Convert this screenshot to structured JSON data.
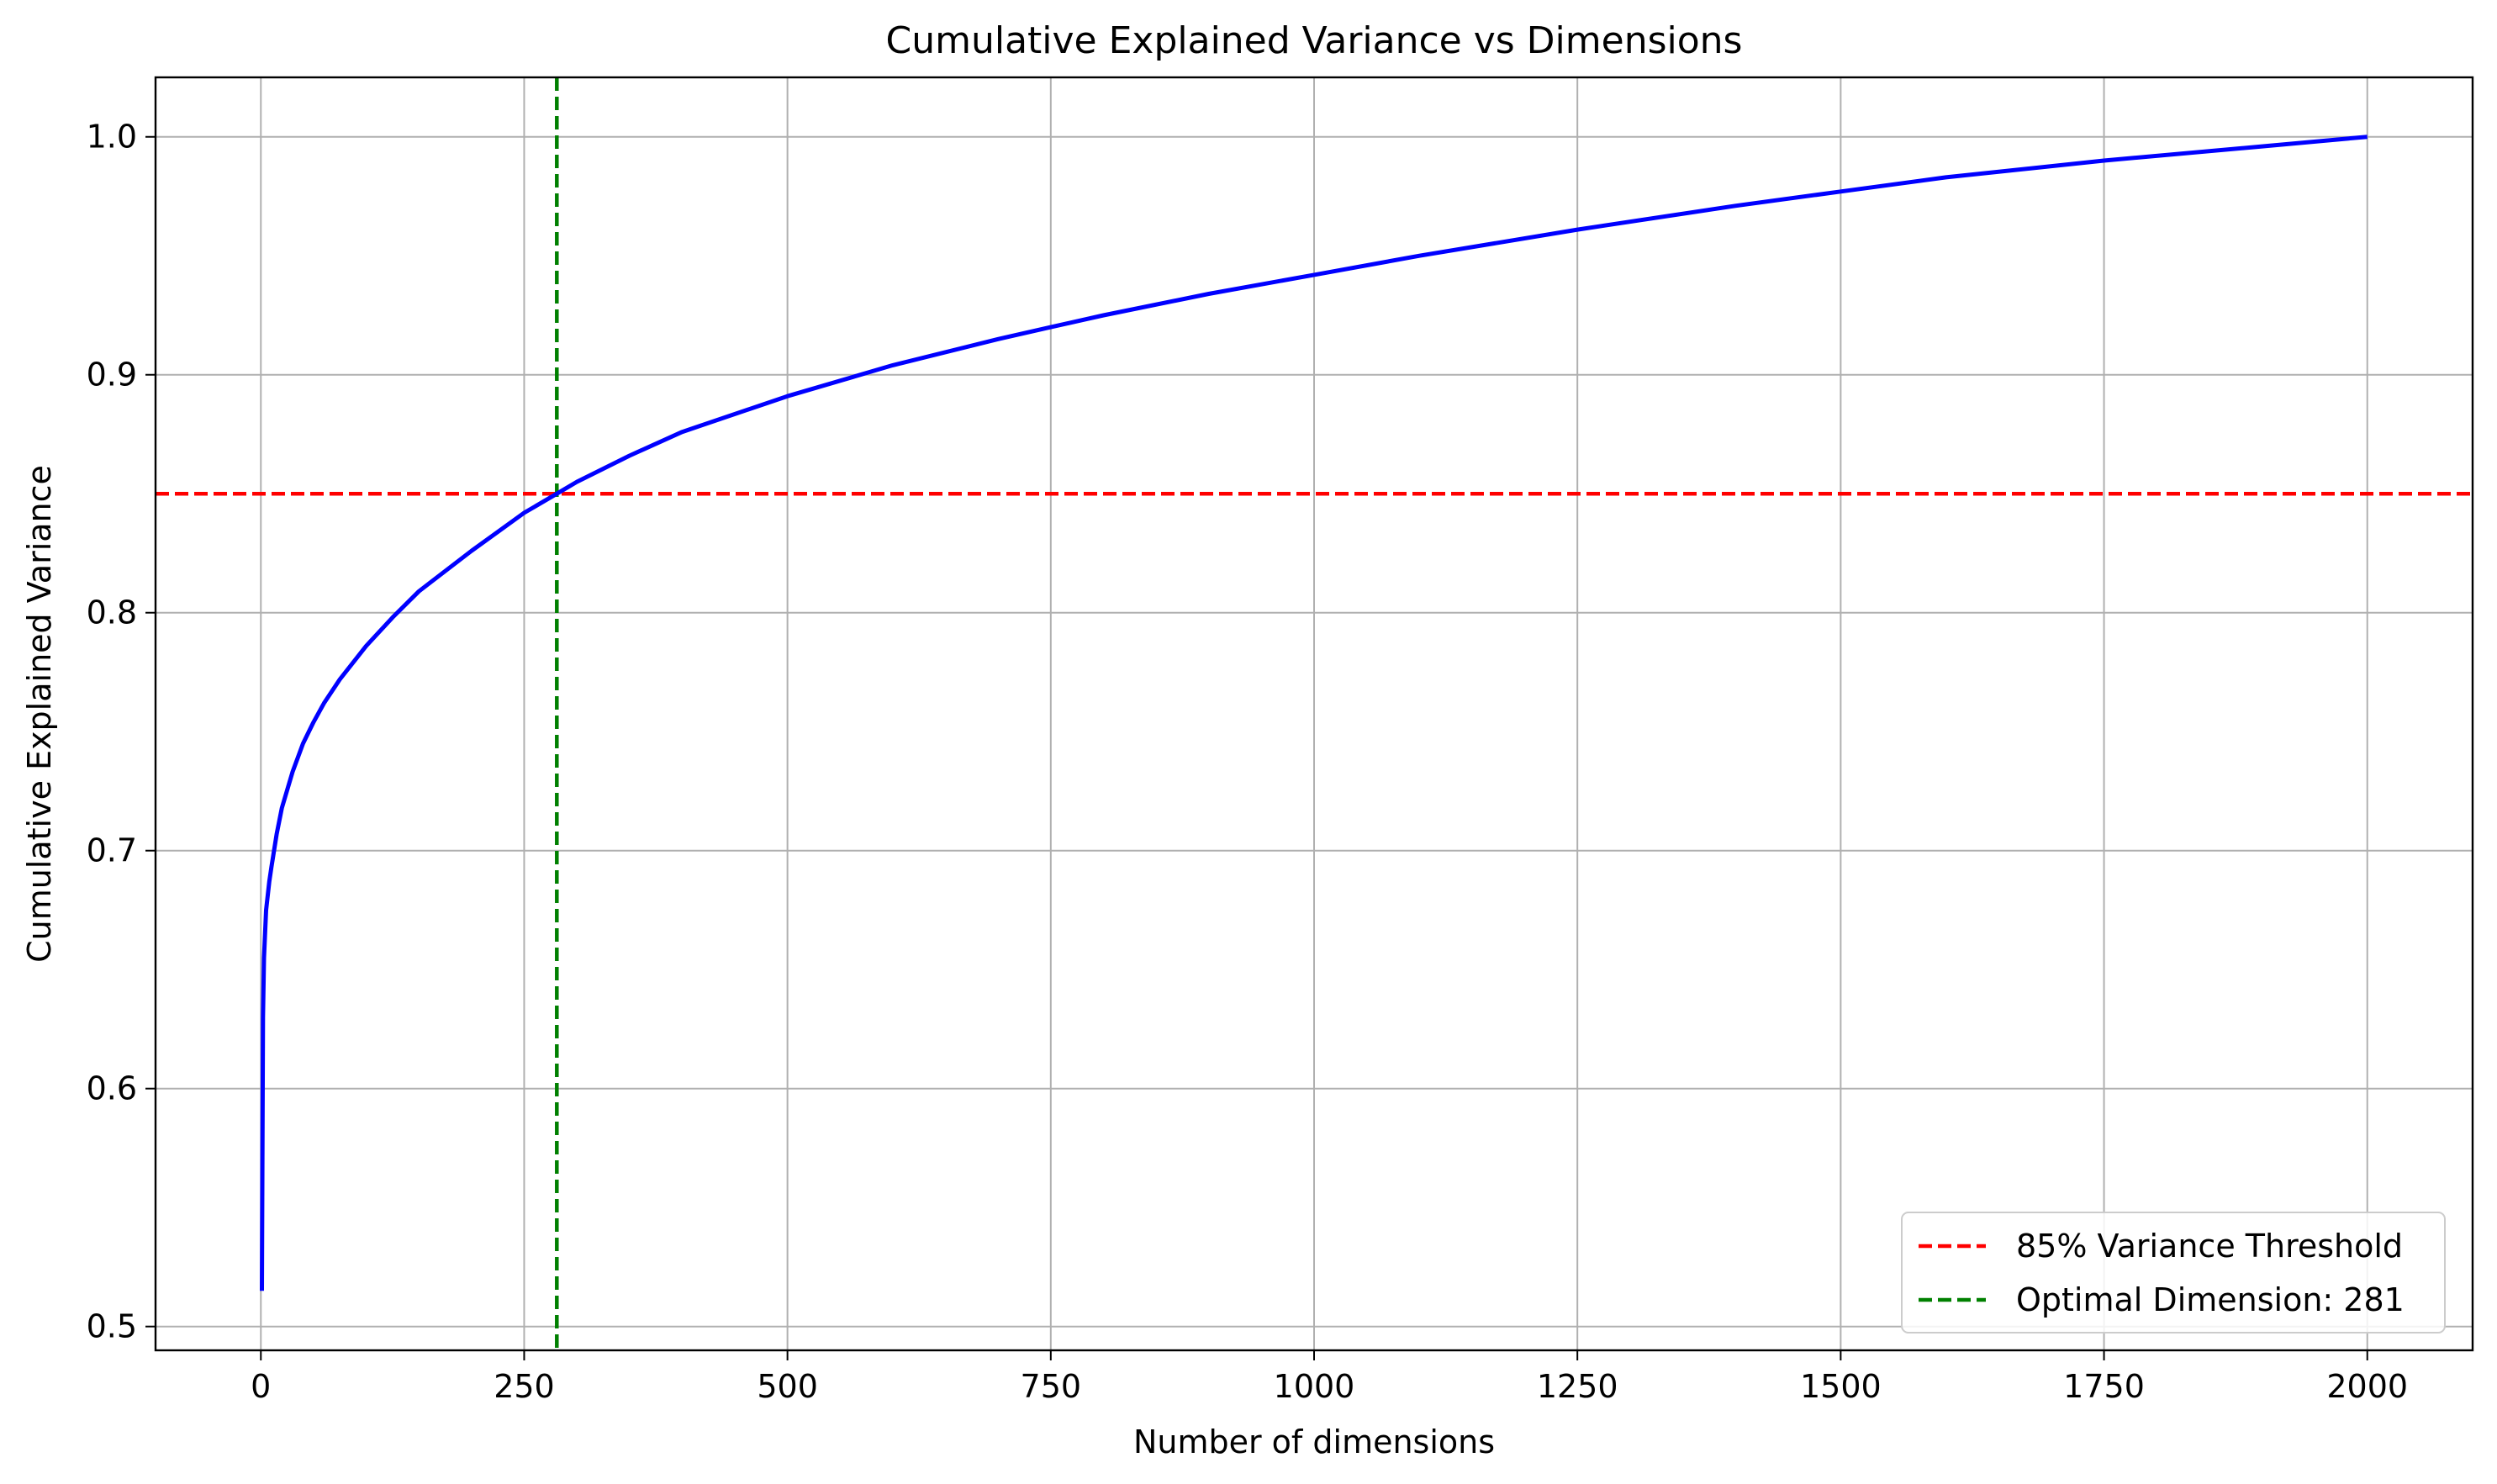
{
  "chart_data": {
    "type": "line",
    "title": "Cumulative Explained Variance vs Dimensions",
    "xlabel": "Number of dimensions",
    "ylabel": "Cumulative Explained Variance",
    "xlim": [
      -100,
      2100
    ],
    "ylim": [
      0.49,
      1.025
    ],
    "x_ticks": [
      0,
      250,
      500,
      750,
      1000,
      1250,
      1500,
      1750,
      2000
    ],
    "x_tick_labels": [
      "0",
      "250",
      "500",
      "750",
      "1000",
      "1250",
      "1500",
      "1750",
      "2000"
    ],
    "y_ticks": [
      0.5,
      0.6,
      0.7,
      0.8,
      0.9,
      1.0
    ],
    "y_tick_labels": [
      "0.5",
      "0.6",
      "0.7",
      "0.8",
      "0.9",
      "1.0"
    ],
    "grid": true,
    "legend_position": "bottom-right",
    "series": [
      {
        "color": "#0000ff",
        "style": "solid",
        "x": [
          1,
          2,
          3,
          5,
          8,
          10,
          15,
          20,
          30,
          40,
          50,
          60,
          75,
          100,
          125,
          150,
          200,
          250,
          281,
          300,
          350,
          400,
          500,
          600,
          700,
          750,
          800,
          900,
          1000,
          1100,
          1250,
          1400,
          1500,
          1600,
          1750,
          1900,
          2000
        ],
        "y": [
          0.515,
          0.63,
          0.655,
          0.675,
          0.687,
          0.693,
          0.707,
          0.718,
          0.733,
          0.745,
          0.754,
          0.762,
          0.772,
          0.786,
          0.798,
          0.809,
          0.826,
          0.842,
          0.85,
          0.855,
          0.866,
          0.876,
          0.891,
          0.904,
          0.915,
          0.92,
          0.925,
          0.934,
          0.942,
          0.95,
          0.961,
          0.971,
          0.977,
          0.983,
          0.99,
          0.996,
          1.0
        ]
      }
    ],
    "reference_lines": [
      {
        "orientation": "horizontal",
        "value": 0.85,
        "color": "#ff0000",
        "style": "dashed",
        "label": "85% Variance Threshold"
      },
      {
        "orientation": "vertical",
        "value": 281,
        "color": "#008000",
        "style": "dashed",
        "label": "Optimal Dimension: 281"
      }
    ]
  }
}
